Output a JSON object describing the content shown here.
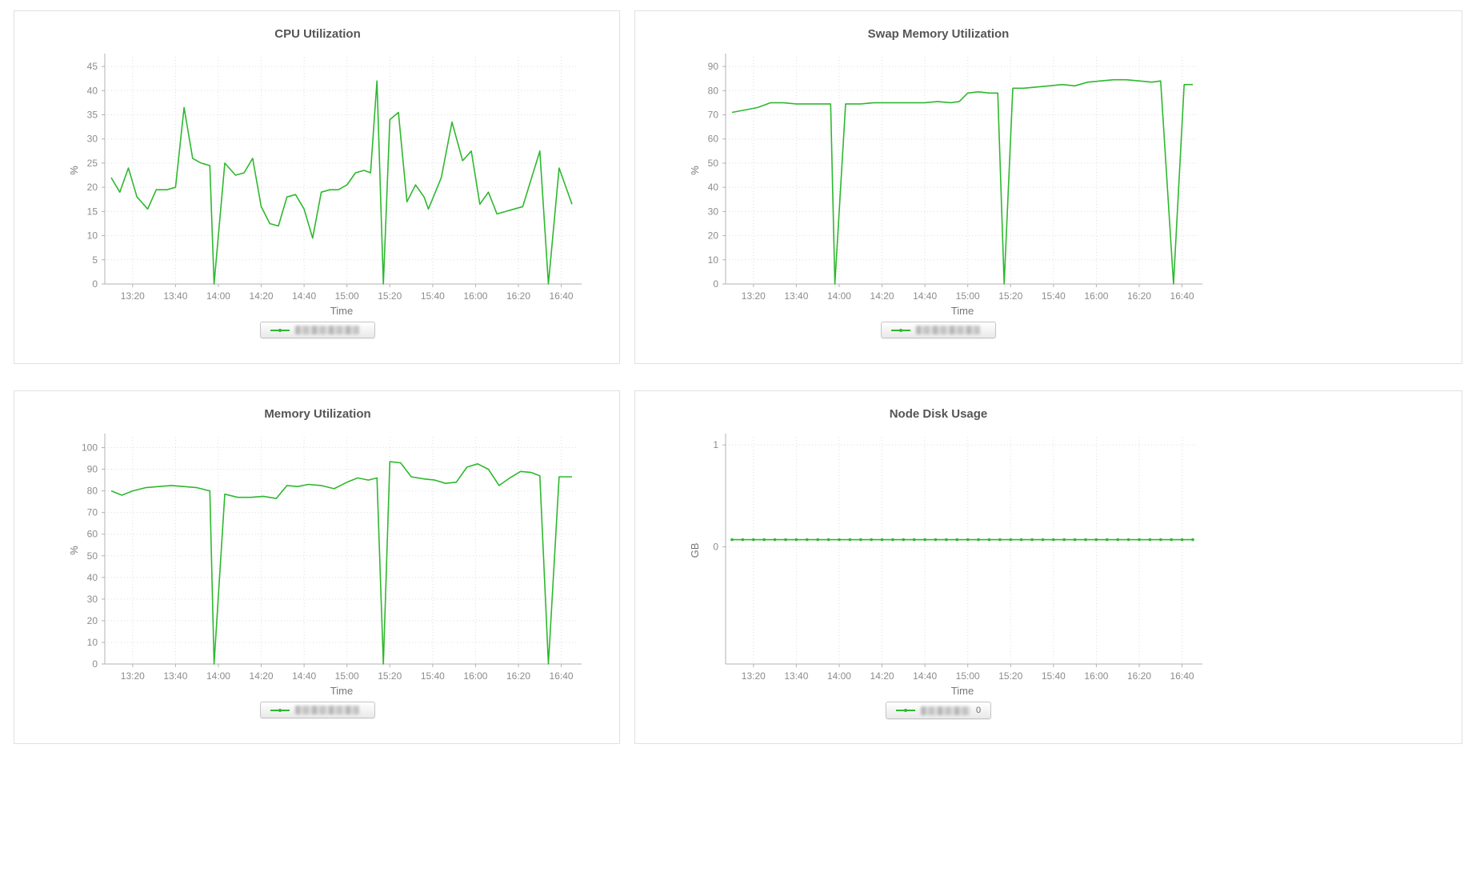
{
  "style": {
    "series_green": "#2eb82e",
    "title_gray": "#555555",
    "tick_gray": "#8c8c8c",
    "axis_gray": "#b3b3b3",
    "grid_gray": "#dedede",
    "panel_border": "#e0e0e0",
    "background": "#ffffff"
  },
  "chart_data": [
    {
      "type": "line",
      "title": "CPU Utilization",
      "xlabel": "Time",
      "ylabel": "%",
      "grid": true,
      "legend_position": "bottom",
      "x_ticks": {
        "labels": [
          "13:20",
          "13:40",
          "14:00",
          "14:20",
          "14:40",
          "15:00",
          "15:20",
          "15:40",
          "16:00",
          "16:20",
          "16:40"
        ],
        "minutes": [
          800,
          820,
          840,
          860,
          880,
          900,
          920,
          940,
          960,
          980,
          1000
        ]
      },
      "xlim": [
        787,
        1008
      ],
      "y_ticks": [
        0,
        5,
        10,
        15,
        20,
        25,
        30,
        35,
        40,
        45
      ],
      "ylim": [
        0,
        47
      ],
      "series": [
        {
          "x": [
            790,
            794,
            798,
            802,
            807,
            811,
            816,
            820,
            824,
            828,
            832,
            836,
            838,
            843,
            848,
            852,
            856,
            860,
            864,
            868,
            872,
            876,
            880,
            884,
            888,
            892,
            896,
            900,
            904,
            908,
            911,
            914,
            917,
            920,
            924,
            928,
            932,
            936,
            938,
            944,
            949,
            954,
            958,
            962,
            966,
            970,
            974,
            978,
            982,
            990,
            994,
            999,
            1005
          ],
          "y": [
            22,
            19,
            24,
            18,
            15.5,
            19.5,
            19.5,
            20,
            36.5,
            26,
            25,
            24.5,
            0,
            25,
            22.5,
            23,
            26,
            16,
            12.5,
            12,
            18,
            18.5,
            15.5,
            9.5,
            19,
            19.5,
            19.5,
            20.5,
            23,
            23.5,
            23,
            42,
            0,
            34,
            35.5,
            17,
            20.5,
            18,
            15.5,
            22,
            33.5,
            25.5,
            27.5,
            16.5,
            19,
            14.5,
            15,
            15.5,
            16,
            27.5,
            0,
            24,
            16.5
          ],
          "markers": false
        }
      ],
      "legend": {
        "redacted": true,
        "visible_suffix": ""
      }
    },
    {
      "type": "line",
      "title": "Swap Memory Utilization",
      "xlabel": "Time",
      "ylabel": "%",
      "grid": true,
      "legend_position": "bottom",
      "x_ticks": {
        "labels": [
          "13:20",
          "13:40",
          "14:00",
          "14:20",
          "14:40",
          "15:00",
          "15:20",
          "15:40",
          "16:00",
          "16:20",
          "16:40"
        ],
        "minutes": [
          800,
          820,
          840,
          860,
          880,
          900,
          920,
          940,
          960,
          980,
          1000
        ]
      },
      "xlim": [
        787,
        1008
      ],
      "y_ticks": [
        0,
        10,
        20,
        30,
        40,
        50,
        60,
        70,
        80,
        90
      ],
      "ylim": [
        0,
        94
      ],
      "series": [
        {
          "x": [
            790,
            796,
            802,
            808,
            814,
            820,
            826,
            832,
            836,
            838,
            843,
            850,
            856,
            862,
            868,
            874,
            880,
            886,
            892,
            896,
            900,
            905,
            910,
            914,
            917,
            921,
            926,
            932,
            938,
            944,
            950,
            956,
            962,
            968,
            974,
            980,
            986,
            990,
            996,
            1001,
            1005
          ],
          "y": [
            71,
            72,
            73,
            75,
            75,
            74.5,
            74.5,
            74.5,
            74.5,
            0,
            74.5,
            74.5,
            75,
            75,
            75,
            75,
            75,
            75.5,
            75,
            75.5,
            79,
            79.5,
            79,
            79,
            0,
            81,
            81,
            81.5,
            82,
            82.5,
            82,
            83.5,
            84,
            84.5,
            84.5,
            84,
            83.5,
            84,
            0,
            82.5,
            82.5
          ],
          "markers": false
        }
      ],
      "legend": {
        "redacted": true,
        "visible_suffix": ""
      }
    },
    {
      "type": "line",
      "title": "Memory Utilization",
      "xlabel": "Time",
      "ylabel": "%",
      "grid": true,
      "legend_position": "bottom",
      "x_ticks": {
        "labels": [
          "13:20",
          "13:40",
          "14:00",
          "14:20",
          "14:40",
          "15:00",
          "15:20",
          "15:40",
          "16:00",
          "16:20",
          "16:40"
        ],
        "minutes": [
          800,
          820,
          840,
          860,
          880,
          900,
          920,
          940,
          960,
          980,
          1000
        ]
      },
      "xlim": [
        787,
        1008
      ],
      "y_ticks": [
        0,
        10,
        20,
        30,
        40,
        50,
        60,
        70,
        80,
        90,
        100
      ],
      "ylim": [
        0,
        105
      ],
      "series": [
        {
          "x": [
            790,
            795,
            800,
            806,
            812,
            818,
            824,
            830,
            836,
            838,
            843,
            849,
            855,
            861,
            867,
            872,
            877,
            882,
            888,
            894,
            900,
            905,
            910,
            914,
            917,
            920,
            925,
            930,
            936,
            941,
            946,
            951,
            956,
            961,
            966,
            971,
            976,
            981,
            986,
            990,
            994,
            999,
            1005
          ],
          "y": [
            80,
            78,
            80,
            81.5,
            82,
            82.5,
            82,
            81.5,
            80,
            0,
            78.5,
            77,
            77,
            77.5,
            76.5,
            82.5,
            82,
            83,
            82.5,
            81,
            84,
            86,
            85,
            86,
            0,
            93.5,
            93,
            86.5,
            85.5,
            85,
            83.5,
            84,
            91,
            92.5,
            90,
            82.5,
            86,
            89,
            88.5,
            87,
            0,
            86.5,
            86.5
          ],
          "markers": false
        }
      ],
      "legend": {
        "redacted": true,
        "visible_suffix": ""
      }
    },
    {
      "type": "line",
      "title": "Node Disk Usage",
      "xlabel": "Time",
      "ylabel": "GB",
      "grid": true,
      "legend_position": "bottom",
      "x_ticks": {
        "labels": [
          "13:20",
          "13:40",
          "14:00",
          "14:20",
          "14:40",
          "15:00",
          "15:20",
          "15:40",
          "16:00",
          "16:20",
          "16:40"
        ],
        "minutes": [
          800,
          820,
          840,
          860,
          880,
          900,
          920,
          940,
          960,
          980,
          1000
        ]
      },
      "xlim": [
        787,
        1008
      ],
      "y_ticks": [
        0,
        1
      ],
      "ylim": [
        -1.15,
        1.08
      ],
      "series": [
        {
          "flat_value": 0.07,
          "x_start": 790,
          "x_end": 1005,
          "x_step": 5,
          "markers": true
        }
      ],
      "legend": {
        "redacted": true,
        "visible_suffix": "0"
      }
    }
  ]
}
